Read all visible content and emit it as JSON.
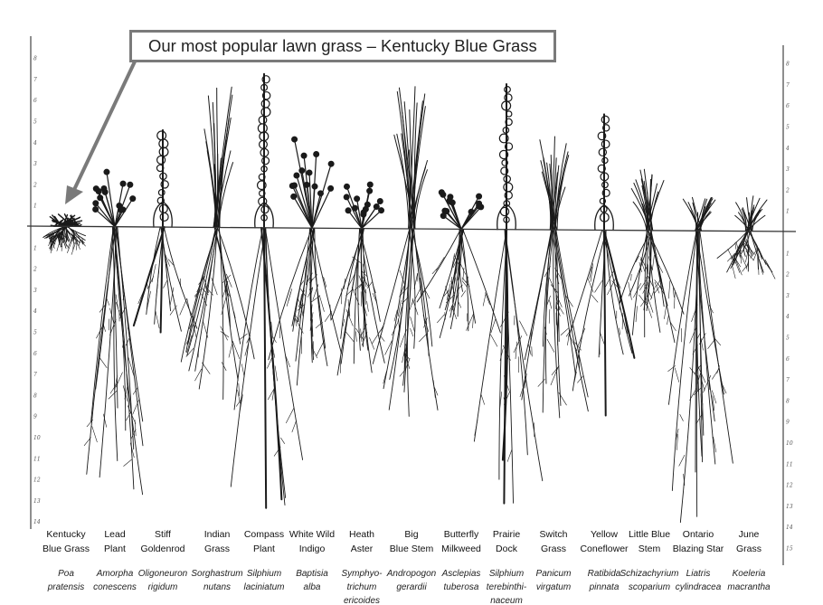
{
  "callout": {
    "text": "Our most popular lawn grass – Kentucky Blue Grass",
    "points_to": "Kentucky Blue Grass",
    "border_color": "#7a7a7a"
  },
  "scale": {
    "unit": "feet",
    "above_ground": [
      1,
      2,
      3,
      4,
      5,
      6,
      7,
      8
    ],
    "left_below_ground": [
      1,
      2,
      3,
      4,
      5,
      6,
      7,
      8,
      9,
      10,
      11,
      12,
      13,
      14
    ],
    "right_below_ground": [
      1,
      2,
      3,
      4,
      5,
      6,
      7,
      8,
      9,
      10,
      11,
      12,
      13,
      14,
      15
    ]
  },
  "plants": [
    {
      "common": "Kentucky\nBlue Grass",
      "scientific": "Poa\npratensis",
      "type": "turf",
      "shoot_height_ft": 0.6,
      "root_depth_ft": 0.8
    },
    {
      "common": "Lead\nPlant",
      "scientific": "Amorpha\nconescens",
      "type": "bush",
      "shoot_height_ft": 2.6,
      "root_depth_ft": 13
    },
    {
      "common": "Stiff\nGoldenrod",
      "scientific": "Oligoneuron\nrigidum",
      "type": "spike",
      "shoot_height_ft": 4.6,
      "root_depth_ft": 5
    },
    {
      "common": "Indian\nGrass",
      "scientific": "Sorghastrum\nnutans",
      "type": "grass",
      "shoot_height_ft": 6.8,
      "root_depth_ft": 8.4
    },
    {
      "common": "Compass\nPlant",
      "scientific": "Silphium\nlaciniatum",
      "type": "spike",
      "shoot_height_ft": 7.3,
      "root_depth_ft": 13.3
    },
    {
      "common": "White Wild\nIndigo",
      "scientific": "Baptisia\nalba",
      "type": "bush",
      "shoot_height_ft": 4.6,
      "root_depth_ft": 7.7
    },
    {
      "common": "Heath\nAster",
      "scientific": "Symphyo-\ntrichum\nericoides",
      "type": "bush",
      "shoot_height_ft": 2.1,
      "root_depth_ft": 7.1
    },
    {
      "common": "Big\nBlue Stem",
      "scientific": "Andropogon\ngerardii",
      "type": "grass",
      "shoot_height_ft": 7.0,
      "root_depth_ft": 9.2
    },
    {
      "common": "Butterfly\nMilkweed",
      "scientific": "Asclepias\ntuberosa",
      "type": "bush",
      "shoot_height_ft": 2.1,
      "root_depth_ft": 5.2
    },
    {
      "common": "Prairie\nDock",
      "scientific": "Silphium\nterebinthi-\nnaceum",
      "type": "spike",
      "shoot_height_ft": 6.9,
      "root_depth_ft": 13
    },
    {
      "common": "Switch\nGrass",
      "scientific": "Panicum\nvirgatum",
      "type": "grass",
      "shoot_height_ft": 4.5,
      "root_depth_ft": 9
    },
    {
      "common": "Yellow\nConeflower",
      "scientific": "Ratibida\npinnata",
      "type": "spike",
      "shoot_height_ft": 5.5,
      "root_depth_ft": 8.8
    },
    {
      "common": "Little Blue\nStem",
      "scientific": "Schizachyrium\nscoparium",
      "type": "grass",
      "shoot_height_ft": 3.0,
      "root_depth_ft": 5.6
    },
    {
      "common": "Ontario\nBlazing Star",
      "scientific": "Liatris\ncylindracea",
      "type": "grass",
      "shoot_height_ft": 1.6,
      "root_depth_ft": 14
    },
    {
      "common": "June\nGrass",
      "scientific": "Koeleria\nmacrantha",
      "type": "grass",
      "shoot_height_ft": 1.8,
      "root_depth_ft": 2.1
    }
  ]
}
